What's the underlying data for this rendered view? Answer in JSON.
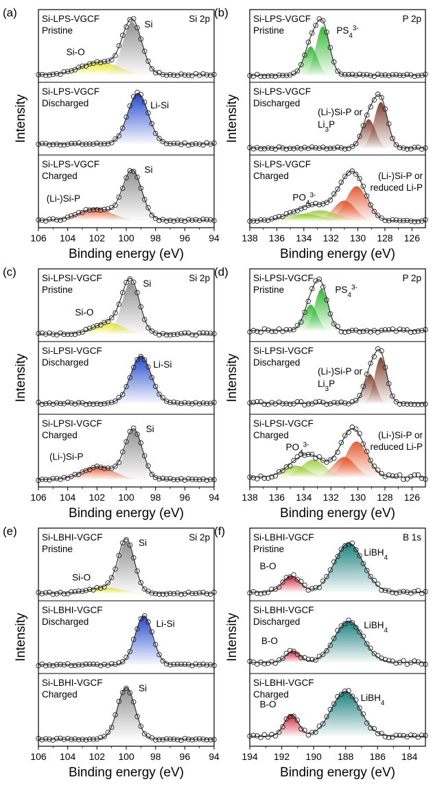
{
  "chart_data": [
    {
      "panel": "(a)",
      "type": "line",
      "core_level": "Si 2p",
      "xlabel": "Binding energy (eV)",
      "ylabel": "Intensity",
      "xlim": [
        106,
        94
      ],
      "xticks": [
        106,
        104,
        102,
        100,
        98,
        96,
        94
      ],
      "stacks": [
        {
          "label": [
            "Si-LPS-VGCF",
            "Pristine"
          ],
          "peaks": [
            {
              "name": "Si",
              "center": 99.6,
              "width": 0.65,
              "amp": 0.92,
              "color": "#8c8c8c",
              "label": "Si"
            },
            {
              "name": "Si-O",
              "center": 101.8,
              "width": 1.3,
              "amp": 0.22,
              "color": "#e6e21c",
              "label": "Si-O"
            }
          ],
          "baseline": 0.06,
          "noise": 0.02
        },
        {
          "label": [
            "Si-LPS-VGCF",
            "Discharged"
          ],
          "peaks": [
            {
              "name": "Li-Si",
              "center": 99.2,
              "width": 0.7,
              "amp": 0.88,
              "color": "#1a3fc8",
              "label": "Li-Si"
            }
          ],
          "baseline": 0.12,
          "noise": 0.02
        },
        {
          "label": [
            "Si-LPS-VGCF",
            "Charged"
          ],
          "peaks": [
            {
              "name": "Si",
              "center": 99.6,
              "width": 0.65,
              "amp": 0.86,
              "color": "#8c8c8c",
              "label": "Si"
            },
            {
              "name": "(Li-)Si-P",
              "center": 102.1,
              "width": 1.1,
              "amp": 0.2,
              "color": "#e2552a",
              "label": "(Li-)Si-P"
            }
          ],
          "baseline": 0.06,
          "noise": 0.02
        }
      ]
    },
    {
      "panel": "(b)",
      "type": "line",
      "core_level": "P 2p",
      "xlabel": "Binding energy (eV)",
      "ylabel": "Intensity",
      "xlim": [
        138,
        125
      ],
      "xticks": [
        138,
        136,
        134,
        132,
        130,
        128,
        126
      ],
      "stacks": [
        {
          "label": [
            "Si-LPS-VGCF",
            "Pristine"
          ],
          "peaks": [
            {
              "name": "PS4 3-",
              "center": 132.6,
              "width": 0.5,
              "amp": 0.85,
              "color": "#2bb52b",
              "label": "PS4"
            },
            {
              "name": "PS4 3- b",
              "center": 133.5,
              "width": 0.5,
              "amp": 0.5,
              "color": "#2bb52b"
            }
          ],
          "baseline": 0.05,
          "noise": 0.02
        },
        {
          "label": [
            "Si-LPS-VGCF",
            "Discharged"
          ],
          "peaks": [
            {
              "name": "(Li-)Si-P",
              "center": 128.3,
              "width": 0.5,
              "amp": 0.8,
              "color": "#7a3a26",
              "label": "(Li-)Si-P or"
            },
            {
              "name": "(Li-)Si-P b",
              "center": 129.2,
              "width": 0.5,
              "amp": 0.5,
              "color": "#7a3a26"
            }
          ],
          "baseline": 0.05,
          "noise": 0.02
        },
        {
          "label": [
            "Si-LPS-VGCF",
            "Charged"
          ],
          "peaks": [
            {
              "name": "reduced Li-P",
              "center": 130.1,
              "width": 0.8,
              "amp": 0.6,
              "color": "#e2552a",
              "label": "(Li-)Si-P or"
            },
            {
              "name": "reduced Li-P b",
              "center": 131.0,
              "width": 0.8,
              "amp": 0.35,
              "color": "#e2552a"
            },
            {
              "name": "PO4 3-",
              "center": 132.8,
              "width": 1.3,
              "amp": 0.18,
              "color": "#9acd32",
              "label": "PO4"
            },
            {
              "name": "PO4 3- b",
              "center": 134.0,
              "width": 1.3,
              "amp": 0.12,
              "color": "#9acd32"
            }
          ],
          "baseline": 0.05,
          "noise": 0.02
        }
      ]
    },
    {
      "panel": "(c)",
      "type": "line",
      "core_level": "Si 2p",
      "xlabel": "Binding energy (eV)",
      "ylabel": "Intensity",
      "xlim": [
        106,
        94
      ],
      "xticks": [
        106,
        104,
        102,
        100,
        98,
        96,
        94
      ],
      "stacks": [
        {
          "label": [
            "Si-LPSI-VGCF",
            "Pristine"
          ],
          "peaks": [
            {
              "name": "Si",
              "center": 99.7,
              "width": 0.6,
              "amp": 0.9,
              "color": "#8c8c8c",
              "label": "Si"
            },
            {
              "name": "Si-O",
              "center": 101.2,
              "width": 1.0,
              "amp": 0.2,
              "color": "#e6e21c",
              "label": "Si-O"
            }
          ],
          "baseline": 0.06,
          "noise": 0.02
        },
        {
          "label": [
            "Si-LPSI-VGCF",
            "Discharged"
          ],
          "peaks": [
            {
              "name": "Li-Si",
              "center": 99.0,
              "width": 0.7,
              "amp": 0.82,
              "color": "#1a3fc8",
              "label": "Li-Si"
            }
          ],
          "baseline": 0.12,
          "noise": 0.02
        },
        {
          "label": [
            "Si-LPSI-VGCF",
            "Charged"
          ],
          "peaks": [
            {
              "name": "Si",
              "center": 99.5,
              "width": 0.6,
              "amp": 0.86,
              "color": "#8c8c8c",
              "label": "Si"
            },
            {
              "name": "(Li-)Si-P",
              "center": 101.9,
              "width": 1.1,
              "amp": 0.22,
              "color": "#e2552a",
              "label": "(Li-)Si-P"
            }
          ],
          "baseline": 0.06,
          "noise": 0.02
        }
      ]
    },
    {
      "panel": "(d)",
      "type": "line",
      "core_level": "P 2p",
      "xlabel": "Binding energy (eV)",
      "ylabel": "Intensity",
      "xlim": [
        138,
        125
      ],
      "xticks": [
        138,
        136,
        134,
        132,
        130,
        128,
        126
      ],
      "stacks": [
        {
          "label": [
            "Si-LPSI-VGCF",
            "Pristine"
          ],
          "peaks": [
            {
              "name": "PS4 3-",
              "center": 132.7,
              "width": 0.5,
              "amp": 0.72,
              "color": "#2bb52b",
              "label": "PS4"
            },
            {
              "name": "PS4 3- b",
              "center": 133.5,
              "width": 0.5,
              "amp": 0.45,
              "color": "#2bb52b"
            }
          ],
          "baseline": 0.12,
          "noise": 0.03
        },
        {
          "label": [
            "Si-LPSI-VGCF",
            "Discharged"
          ],
          "peaks": [
            {
              "name": "(Li-)Si-P",
              "center": 128.3,
              "width": 0.45,
              "amp": 0.8,
              "color": "#7a3a26",
              "label": "(Li-)Si-P or"
            },
            {
              "name": "(Li-)Si-P b",
              "center": 129.1,
              "width": 0.45,
              "amp": 0.5,
              "color": "#7a3a26"
            }
          ],
          "baseline": 0.12,
          "noise": 0.03
        },
        {
          "label": [
            "Si-LPSI-VGCF",
            "Charged"
          ],
          "peaks": [
            {
              "name": "reduced Li-P",
              "center": 130.1,
              "width": 0.8,
              "amp": 0.62,
              "color": "#e2552a",
              "label": "(Li-)Si-P or"
            },
            {
              "name": "reduced Li-P b",
              "center": 131.0,
              "width": 0.8,
              "amp": 0.35,
              "color": "#e2552a"
            },
            {
              "name": "PO4 3-",
              "center": 133.3,
              "width": 0.9,
              "amp": 0.3,
              "color": "#9acd32",
              "label": "PO4"
            },
            {
              "name": "PO4 3- b",
              "center": 134.6,
              "width": 0.9,
              "amp": 0.2,
              "color": "#9acd32"
            }
          ],
          "baseline": 0.1,
          "noise": 0.04
        }
      ]
    },
    {
      "panel": "(e)",
      "type": "line",
      "core_level": "Si 2p",
      "xlabel": "Binding energy (eV)",
      "ylabel": "Intensity",
      "xlim": [
        106,
        94
      ],
      "xticks": [
        106,
        104,
        102,
        100,
        98,
        96,
        94
      ],
      "stacks": [
        {
          "label": [
            "Si-LBHI-VGCF",
            "Pristine"
          ],
          "peaks": [
            {
              "name": "Si",
              "center": 100.0,
              "width": 0.55,
              "amp": 0.9,
              "color": "#8c8c8c",
              "label": "Si"
            },
            {
              "name": "Si-O",
              "center": 101.4,
              "width": 1.1,
              "amp": 0.1,
              "color": "#e6e21c",
              "label": "Si-O"
            }
          ],
          "baseline": 0.06,
          "noise": 0.02
        },
        {
          "label": [
            "Si-LBHI-VGCF",
            "Discharged"
          ],
          "peaks": [
            {
              "name": "Li-Si",
              "center": 98.8,
              "width": 0.6,
              "amp": 0.85,
              "color": "#1a3fc8",
              "label": "Li-Si"
            }
          ],
          "baseline": 0.08,
          "noise": 0.02
        },
        {
          "label": [
            "Si-LBHI-VGCF",
            "Charged"
          ],
          "peaks": [
            {
              "name": "Si",
              "center": 100.0,
              "width": 0.6,
              "amp": 0.9,
              "color": "#8c8c8c",
              "label": "Si"
            }
          ],
          "baseline": 0.05,
          "noise": 0.02
        }
      ]
    },
    {
      "panel": "(f)",
      "type": "line",
      "core_level": "B 1s",
      "xlabel": "Binding energy (eV)",
      "ylabel": "Intensity",
      "xlim": [
        194,
        183
      ],
      "xticks": [
        194,
        192,
        190,
        188,
        186,
        184
      ],
      "stacks": [
        {
          "label": [
            "Si-LBHI-VGCF",
            "Pristine"
          ],
          "peaks": [
            {
              "name": "LiBH4",
              "center": 187.8,
              "width": 0.9,
              "amp": 0.85,
              "color": "#0f7b78",
              "label": "LiBH"
            },
            {
              "name": "B-O",
              "center": 191.4,
              "width": 0.55,
              "amp": 0.28,
              "color": "#c8142a",
              "label": "B-O"
            }
          ],
          "baseline": 0.08,
          "noise": 0.03
        },
        {
          "label": [
            "Si-LBHI-VGCF",
            "Discharged"
          ],
          "peaks": [
            {
              "name": "LiBH4",
              "center": 187.8,
              "width": 0.9,
              "amp": 0.72,
              "color": "#0f7b78",
              "label": "LiBH"
            },
            {
              "name": "B-O",
              "center": 191.3,
              "width": 0.45,
              "amp": 0.2,
              "color": "#c8142a",
              "label": "B-O"
            }
          ],
          "baseline": 0.12,
          "noise": 0.03
        },
        {
          "label": [
            "Si-LBHI-VGCF",
            "Charged"
          ],
          "peaks": [
            {
              "name": "LiBH4",
              "center": 188.0,
              "width": 0.9,
              "amp": 0.78,
              "color": "#0f7b78",
              "label": "LiBH"
            },
            {
              "name": "B-O",
              "center": 191.4,
              "width": 0.45,
              "amp": 0.38,
              "color": "#c8142a",
              "label": "B-O"
            }
          ],
          "baseline": 0.1,
          "noise": 0.03
        }
      ]
    }
  ],
  "labels": {
    "li3p_line": [
      "Li",
      "3",
      "P"
    ],
    "reduced_line": "reduced Li-P",
    "ps4": [
      "PS",
      "4",
      "3-"
    ],
    "po4": [
      "PO",
      "4",
      "3-"
    ],
    "libh4_sub": "4"
  }
}
